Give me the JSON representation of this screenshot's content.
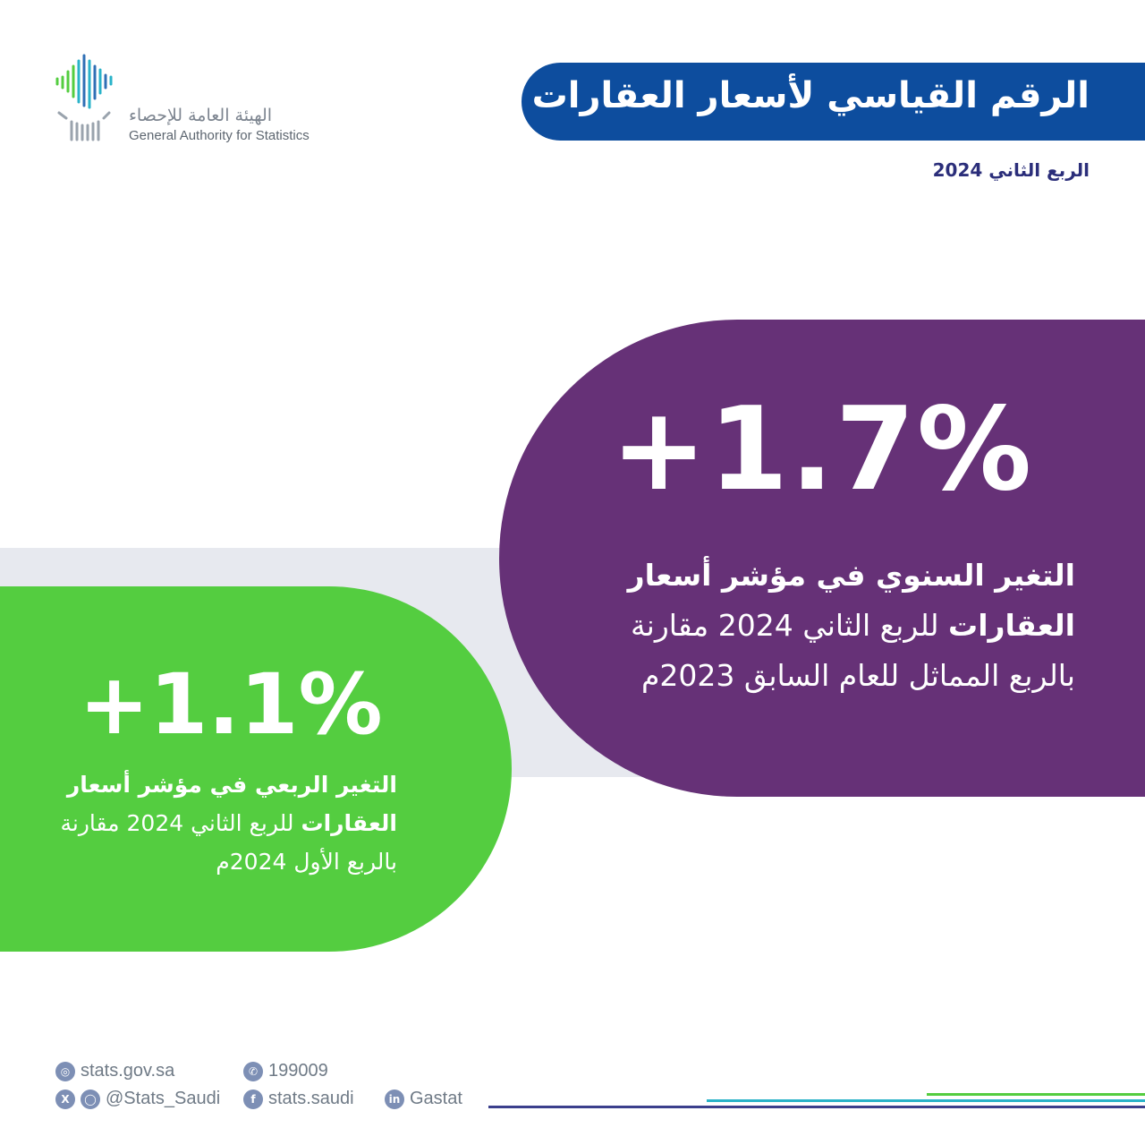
{
  "logo": {
    "name_ar": "الهيئة العامة للإحصاء",
    "name_en": "General Authority for Statistics"
  },
  "header": {
    "title": "الرقم القياسي لأسعار العقارات",
    "subtitle": "الربع الثاني 2024"
  },
  "annual": {
    "value": "+1.7%",
    "desc_bold": "التغير السنوي في مؤشر أسعار العقارات",
    "desc_rest": " للربع الثاني 2024 مقارنة بالربع المماثل للعام السابق 2023م"
  },
  "quarterly": {
    "value": "+1.1%",
    "desc_bold": "التغير الربعي في مؤشر أسعار العقارات",
    "desc_rest": " للربع الثاني 2024 مقارنة بالربع الأول 2024م"
  },
  "footer": {
    "website": "stats.gov.sa",
    "phone": "199009",
    "social_handle": "@Stats_Saudi",
    "facebook": "stats.saudi",
    "linkedin": "Gastat"
  },
  "colors": {
    "header_blue": "#0d4d9e",
    "purple": "#663177",
    "green": "#54cd40",
    "band_grey": "#e7e9ef",
    "line_green": "#54cd40",
    "line_teal": "#29b3c9",
    "line_navy": "#3b3f8c"
  }
}
